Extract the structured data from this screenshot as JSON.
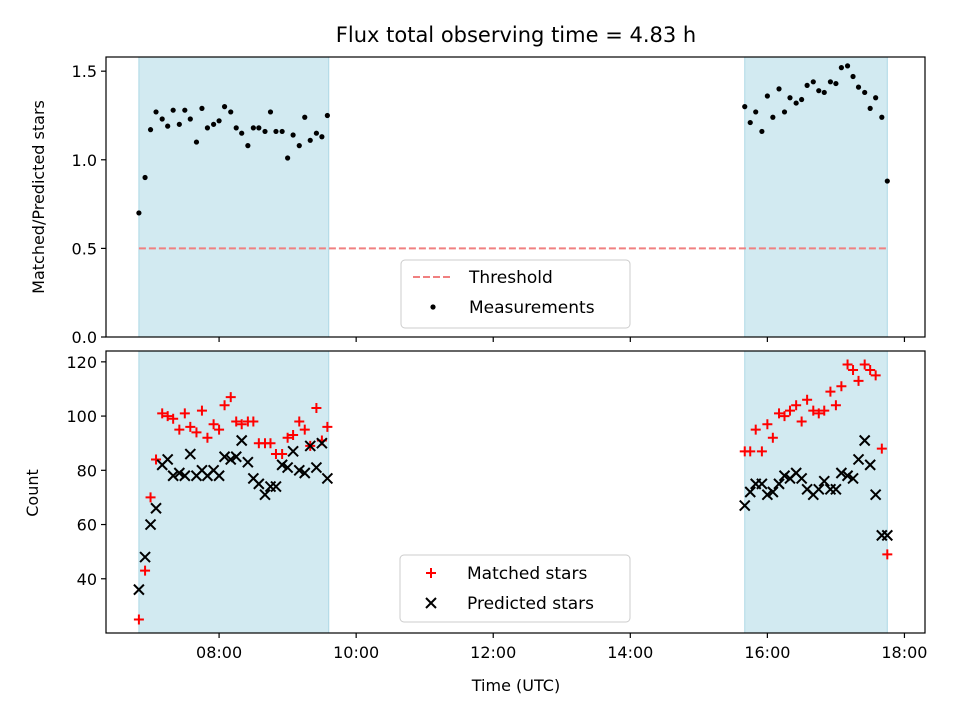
{
  "chart_data": [
    {
      "type": "scatter",
      "title": "Flux total observing time = 4.83 h",
      "xlabel": "",
      "ylabel": "Matched/Predicted stars",
      "xlim": [
        6.35,
        18.3
      ],
      "ylim": [
        0,
        1.58
      ],
      "yticks": [
        0.0,
        0.5,
        1.0,
        1.5
      ],
      "ytick_labels": [
        "0.0",
        "0.5",
        "1.0",
        "1.5"
      ],
      "xticks": [
        8,
        10,
        12,
        14,
        16,
        18
      ],
      "shaded_intervals": [
        [
          6.83,
          9.6
        ],
        [
          15.67,
          17.75
        ]
      ],
      "shade_color": "#add8e6",
      "threshold": {
        "name": "Threshold",
        "y": 0.5,
        "x_range": [
          6.83,
          17.75
        ],
        "color": "#f08080",
        "style": "dashed"
      },
      "series": [
        {
          "name": "Measurements",
          "marker": "dot",
          "color": "#000000",
          "x": [
            6.83,
            6.92,
            7.0,
            7.08,
            7.17,
            7.25,
            7.33,
            7.42,
            7.5,
            7.58,
            7.67,
            7.75,
            7.83,
            7.92,
            8.0,
            8.08,
            8.17,
            8.25,
            8.33,
            8.42,
            8.5,
            8.58,
            8.67,
            8.75,
            8.83,
            8.92,
            9.0,
            9.08,
            9.17,
            9.25,
            9.33,
            9.42,
            9.5,
            9.58,
            15.67,
            15.75,
            15.83,
            15.92,
            16.0,
            16.08,
            16.17,
            16.25,
            16.33,
            16.42,
            16.5,
            16.58,
            16.67,
            16.75,
            16.83,
            16.92,
            17.0,
            17.08,
            17.17,
            17.25,
            17.33,
            17.42,
            17.5,
            17.58,
            17.67,
            17.75
          ],
          "y": [
            0.7,
            0.9,
            1.17,
            1.27,
            1.23,
            1.19,
            1.28,
            1.2,
            1.28,
            1.23,
            1.1,
            1.29,
            1.18,
            1.2,
            1.22,
            1.3,
            1.27,
            1.18,
            1.15,
            1.08,
            1.18,
            1.18,
            1.16,
            1.27,
            1.16,
            1.16,
            1.01,
            1.14,
            1.08,
            1.24,
            1.11,
            1.15,
            1.13,
            1.25,
            1.3,
            1.21,
            1.27,
            1.16,
            1.36,
            1.24,
            1.4,
            1.27,
            1.35,
            1.32,
            1.34,
            1.42,
            1.44,
            1.39,
            1.38,
            1.44,
            1.43,
            1.52,
            1.53,
            1.47,
            1.41,
            1.38,
            1.29,
            1.35,
            1.24,
            0.88
          ]
        }
      ],
      "legend": {
        "loc": "lower center",
        "entries": [
          "Threshold",
          "Measurements"
        ]
      }
    },
    {
      "type": "scatter",
      "title": "",
      "xlabel": "Time (UTC)",
      "ylabel": "Count",
      "xlim": [
        6.35,
        18.3
      ],
      "ylim": [
        20,
        124
      ],
      "yticks": [
        40,
        60,
        80,
        100,
        120
      ],
      "ytick_labels": [
        "40",
        "60",
        "80",
        "100",
        "120"
      ],
      "xticks": [
        8,
        10,
        12,
        14,
        16,
        18
      ],
      "xtick_labels": [
        "08:00",
        "10:00",
        "12:00",
        "14:00",
        "16:00",
        "18:00"
      ],
      "shaded_intervals": [
        [
          6.83,
          9.6
        ],
        [
          15.67,
          17.75
        ]
      ],
      "shade_color": "#add8e6",
      "series": [
        {
          "name": "Matched stars",
          "marker": "plus",
          "color": "#ff0000",
          "x": [
            6.83,
            6.92,
            7.0,
            7.08,
            7.17,
            7.25,
            7.33,
            7.42,
            7.5,
            7.58,
            7.67,
            7.75,
            7.83,
            7.92,
            8.0,
            8.08,
            8.17,
            8.25,
            8.33,
            8.42,
            8.5,
            8.58,
            8.67,
            8.75,
            8.83,
            8.92,
            9.0,
            9.08,
            9.17,
            9.25,
            9.33,
            9.42,
            9.5,
            9.58,
            15.67,
            15.75,
            15.83,
            15.92,
            16.0,
            16.08,
            16.17,
            16.25,
            16.33,
            16.42,
            16.5,
            16.58,
            16.67,
            16.75,
            16.83,
            16.92,
            17.0,
            17.08,
            17.17,
            17.25,
            17.33,
            17.42,
            17.5,
            17.58,
            17.67,
            17.75
          ],
          "y": [
            25,
            43,
            70,
            84,
            101,
            100,
            99,
            95,
            101,
            96,
            94,
            102,
            92,
            97,
            95,
            104,
            107,
            98,
            97,
            98,
            98,
            90,
            90,
            90,
            86,
            86,
            92,
            93,
            98,
            95,
            89,
            103,
            91,
            96,
            87,
            87,
            95,
            87,
            97,
            92,
            101,
            100,
            102,
            104,
            98,
            106,
            102,
            101,
            102,
            109,
            104,
            111,
            119,
            117,
            113,
            119,
            117,
            115,
            88,
            49
          ]
        },
        {
          "name": "Predicted stars",
          "marker": "x",
          "color": "#000000",
          "x": [
            6.83,
            6.92,
            7.0,
            7.08,
            7.17,
            7.25,
            7.33,
            7.42,
            7.5,
            7.58,
            7.67,
            7.75,
            7.83,
            7.92,
            8.0,
            8.08,
            8.17,
            8.25,
            8.33,
            8.42,
            8.5,
            8.58,
            8.67,
            8.75,
            8.83,
            8.92,
            9.0,
            9.08,
            9.17,
            9.25,
            9.33,
            9.42,
            9.5,
            9.58,
            15.67,
            15.75,
            15.83,
            15.92,
            16.0,
            16.08,
            16.17,
            16.25,
            16.33,
            16.42,
            16.5,
            16.58,
            16.67,
            16.75,
            16.83,
            16.92,
            17.0,
            17.08,
            17.17,
            17.25,
            17.33,
            17.42,
            17.5,
            17.58,
            17.67,
            17.75
          ],
          "y": [
            36,
            48,
            60,
            66,
            82,
            84,
            78,
            79,
            78,
            86,
            78,
            80,
            78,
            80,
            78,
            85,
            84,
            85,
            91,
            83,
            77,
            75,
            71,
            74,
            74,
            82,
            81,
            87,
            80,
            79,
            89,
            81,
            90,
            77,
            67,
            72,
            75,
            75,
            71,
            72,
            75,
            78,
            77,
            79,
            77,
            73,
            71,
            73,
            76,
            73,
            73,
            79,
            78,
            77,
            84,
            91,
            82,
            71,
            56,
            56
          ]
        }
      ],
      "legend": {
        "loc": "lower center",
        "entries": [
          "Matched stars",
          "Predicted stars"
        ]
      }
    }
  ]
}
